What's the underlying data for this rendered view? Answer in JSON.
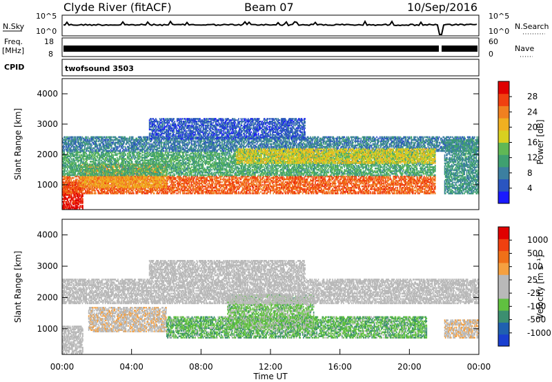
{
  "header": {
    "station": "Clyde River (fitACF)",
    "beam": "Beam 07",
    "date": "10/Sep/2016"
  },
  "top_panels": {
    "nsky_label": "N.Sky",
    "nsky_ticks": [
      "10^5",
      "10^0"
    ],
    "nsearch_label": "N.Search",
    "nsearch_ticks": [
      "10^5",
      "10^0"
    ],
    "freq_label_line1": "Freq.",
    "freq_label_line2": "[MHz]",
    "freq_ticks": [
      "18",
      "8"
    ],
    "nave_label": "Nave",
    "nave_ticks": [
      "60",
      "0"
    ],
    "cpid_label": "CPID",
    "cpid_value": "twofsound 3503"
  },
  "colors": {
    "trace": "#000000",
    "power_scale": [
      "#1a1aff",
      "#2a55c0",
      "#3c7fa0",
      "#3fa070",
      "#60b855",
      "#d8d020",
      "#f0b020",
      "#f08020",
      "#f04010",
      "#e00000"
    ],
    "velocity_scale": [
      "#1a3fd0",
      "#2060b0",
      "#3c8f70",
      "#60c040",
      "#b9b9b9",
      "#b9b9b9",
      "#f5a040",
      "#f07018",
      "#f04010",
      "#e00000"
    ],
    "ground_scatter": "#b9b9b9"
  },
  "chart_data": [
    {
      "type": "heatmap",
      "panel": "power",
      "ylabel": "Slant Range [km]",
      "ylim": [
        180,
        4500
      ],
      "yticks": [
        "1000",
        "2000",
        "3000",
        "4000"
      ],
      "xlim": [
        0,
        24
      ],
      "colorbar_label": "Power [dB]",
      "colorbar_ticks": [
        "28",
        "24",
        "20",
        "16",
        "12",
        "8",
        "4"
      ],
      "colorbar_range": [
        0,
        32
      ],
      "regions": [
        {
          "t0": 0.0,
          "t1": 1.2,
          "r0": 200,
          "r1": 1100,
          "value": 30
        },
        {
          "t0": 0.0,
          "t1": 21.5,
          "r0": 700,
          "r1": 1300,
          "value": 26
        },
        {
          "t0": 1.0,
          "t1": 6.0,
          "r0": 900,
          "r1": 1700,
          "value": 22
        },
        {
          "t0": 0.0,
          "t1": 21.5,
          "r0": 1300,
          "r1": 2100,
          "value": 12
        },
        {
          "t0": 0.0,
          "t1": 24.0,
          "r0": 2100,
          "r1": 2600,
          "value": 8
        },
        {
          "t0": 10.0,
          "t1": 21.5,
          "r0": 1700,
          "r1": 2200,
          "value": 18
        },
        {
          "t0": 22.0,
          "t1": 24.0,
          "r0": 700,
          "r1": 2500,
          "value": 10
        },
        {
          "t0": 5.0,
          "t1": 14.0,
          "r0": 2500,
          "r1": 3200,
          "value": 5
        }
      ]
    },
    {
      "type": "heatmap",
      "panel": "velocity",
      "ylabel": "Slant Range [km]",
      "ylim": [
        180,
        4500
      ],
      "yticks": [
        "1000",
        "2000",
        "3000",
        "4000"
      ],
      "xlim": [
        0,
        24
      ],
      "xlabel": "Time UT",
      "xticks": [
        "00:00",
        "04:00",
        "08:00",
        "12:00",
        "16:00",
        "20:00",
        "00:00"
      ],
      "colorbar_label": "Velocity [m s⁻¹]",
      "colorbar_ticks": [
        "1000",
        "500",
        "100",
        "25",
        "-25",
        "-100",
        "-500",
        "-1000"
      ],
      "colorbar_range": [
        -1200,
        1200
      ],
      "regions": [
        {
          "t0": 0.0,
          "t1": 1.2,
          "r0": 200,
          "r1": 1100,
          "value": 0
        },
        {
          "t0": 1.5,
          "t1": 6.0,
          "r0": 900,
          "r1": 1700,
          "value": 150
        },
        {
          "t0": 6.0,
          "t1": 21.0,
          "r0": 700,
          "r1": 1400,
          "value": -400
        },
        {
          "t0": 9.5,
          "t1": 14.5,
          "r0": 1000,
          "r1": 2100,
          "value": -300
        },
        {
          "t0": 0.0,
          "t1": 24.0,
          "r0": 1800,
          "r1": 2600,
          "value": 0
        },
        {
          "t0": 5.0,
          "t1": 14.0,
          "r0": 2600,
          "r1": 3200,
          "value": 0
        },
        {
          "t0": 22.0,
          "t1": 24.0,
          "r0": 700,
          "r1": 1300,
          "value": 200
        }
      ]
    }
  ]
}
